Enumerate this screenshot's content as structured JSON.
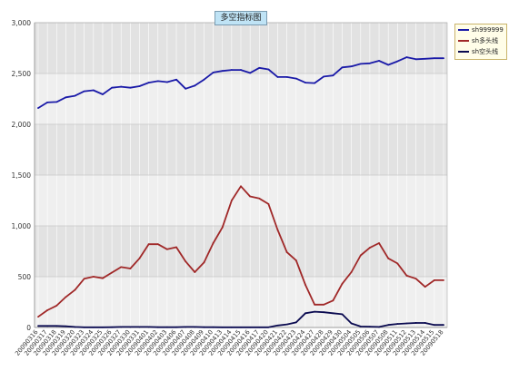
{
  "chart_data": {
    "type": "line",
    "title": "多空指标图",
    "xlabel": "",
    "ylabel": "",
    "ylim": [
      0,
      3000
    ],
    "yticks": [
      "0",
      "500",
      "1,000",
      "1,500",
      "2,000",
      "2,500",
      "3,000"
    ],
    "grid": true,
    "legend_position": "top-right",
    "categories": [
      "20090316",
      "20090317",
      "20090318",
      "20090319",
      "20090320",
      "20090323",
      "20090324",
      "20090325",
      "20090326",
      "20090327",
      "20090330",
      "20090331",
      "20090401",
      "20090402",
      "20090403",
      "20090406",
      "20090407",
      "20090408",
      "20090409",
      "20090410",
      "20090413",
      "20090414",
      "20090415",
      "20090416",
      "20090417",
      "20090420",
      "20090421",
      "20090422",
      "20090423",
      "20090424",
      "20090427",
      "20090428",
      "20090429",
      "20090430",
      "20090504",
      "20090505",
      "20090506",
      "20090507",
      "20090508",
      "20090511",
      "20090512",
      "20090513",
      "20090514",
      "20090515",
      "20090518"
    ],
    "series": [
      {
        "name": "sh999999",
        "color": "#1a1aa8",
        "values": [
          2160,
          2215,
          2220,
          2265,
          2280,
          2325,
          2335,
          2295,
          2360,
          2370,
          2360,
          2375,
          2410,
          2425,
          2415,
          2440,
          2350,
          2380,
          2440,
          2510,
          2525,
          2535,
          2535,
          2505,
          2555,
          2540,
          2465,
          2465,
          2450,
          2410,
          2405,
          2470,
          2480,
          2560,
          2570,
          2595,
          2600,
          2625,
          2585,
          2620,
          2660,
          2640,
          2645,
          2650,
          2650
        ]
      },
      {
        "name": "sh多头线",
        "color": "#a02828",
        "values": [
          105,
          170,
          215,
          300,
          370,
          480,
          500,
          485,
          540,
          595,
          580,
          680,
          820,
          820,
          770,
          790,
          650,
          545,
          640,
          830,
          985,
          1250,
          1390,
          1290,
          1270,
          1215,
          960,
          740,
          660,
          420,
          225,
          225,
          265,
          430,
          545,
          710,
          785,
          830,
          680,
          630,
          510,
          480,
          400,
          465,
          465
        ]
      },
      {
        "name": "sh空头线",
        "color": "#0a0a50",
        "values": [
          15,
          15,
          15,
          12,
          5,
          2,
          2,
          2,
          3,
          5,
          5,
          5,
          5,
          3,
          3,
          3,
          5,
          5,
          3,
          3,
          2,
          2,
          2,
          2,
          2,
          2,
          20,
          30,
          50,
          140,
          155,
          150,
          140,
          130,
          40,
          10,
          8,
          5,
          25,
          35,
          40,
          45,
          45,
          25,
          25
        ]
      }
    ]
  }
}
